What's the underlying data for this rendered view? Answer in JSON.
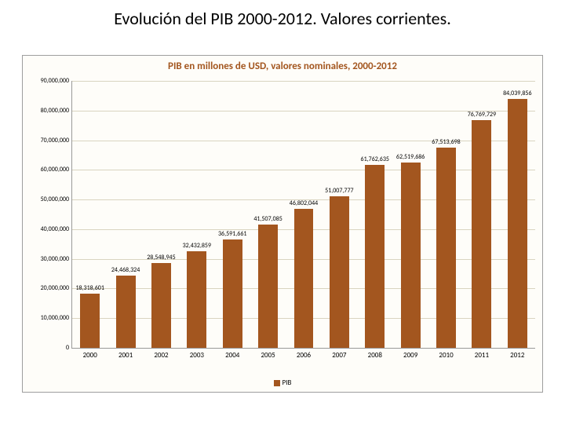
{
  "slide_title": "Evolución del PIB 2000-2012. Valores corrientes.",
  "chart": {
    "type": "bar",
    "title": "PIB en millones de USD, valores nominales, 2000-2012",
    "title_color": "#a3561f",
    "background_color": "#fefdf9",
    "grid_color": "#d9d4c0",
    "axis_color": "#999999",
    "bar_color": "#a3561f",
    "bar_width_ratio": 0.55,
    "ylim_min": 0,
    "ylim_max": 90000000,
    "ytick_step": 10000000,
    "ytick_labels": [
      "0",
      "10,000,000",
      "20,000,000",
      "30,000,000",
      "40,000,000",
      "50,000,000",
      "60,000,000",
      "70,000,000",
      "80,000,000",
      "90,000,000"
    ],
    "categories": [
      "2000",
      "2001",
      "2002",
      "2003",
      "2004",
      "2005",
      "2006",
      "2007",
      "2008",
      "2009",
      "2010",
      "2011",
      "2012"
    ],
    "values": [
      18318601,
      24468324,
      28548945,
      32432859,
      36591661,
      41507085,
      46802044,
      51007777,
      61762635,
      62519686,
      67513698,
      76769729,
      84039856
    ],
    "value_labels": [
      "18,318,601",
      "24,468,324",
      "28,548,945",
      "32,432,859",
      "36,591,661",
      "41,507,085",
      "46,802,044",
      "51,007,777",
      "61,762,635",
      "62,519,686",
      "67,513,698",
      "76,769,729",
      "84,039,856"
    ],
    "legend_label": "PIB",
    "legend_color": "#a3561f",
    "label_fontsize": 8,
    "tick_fontsize": 9
  }
}
